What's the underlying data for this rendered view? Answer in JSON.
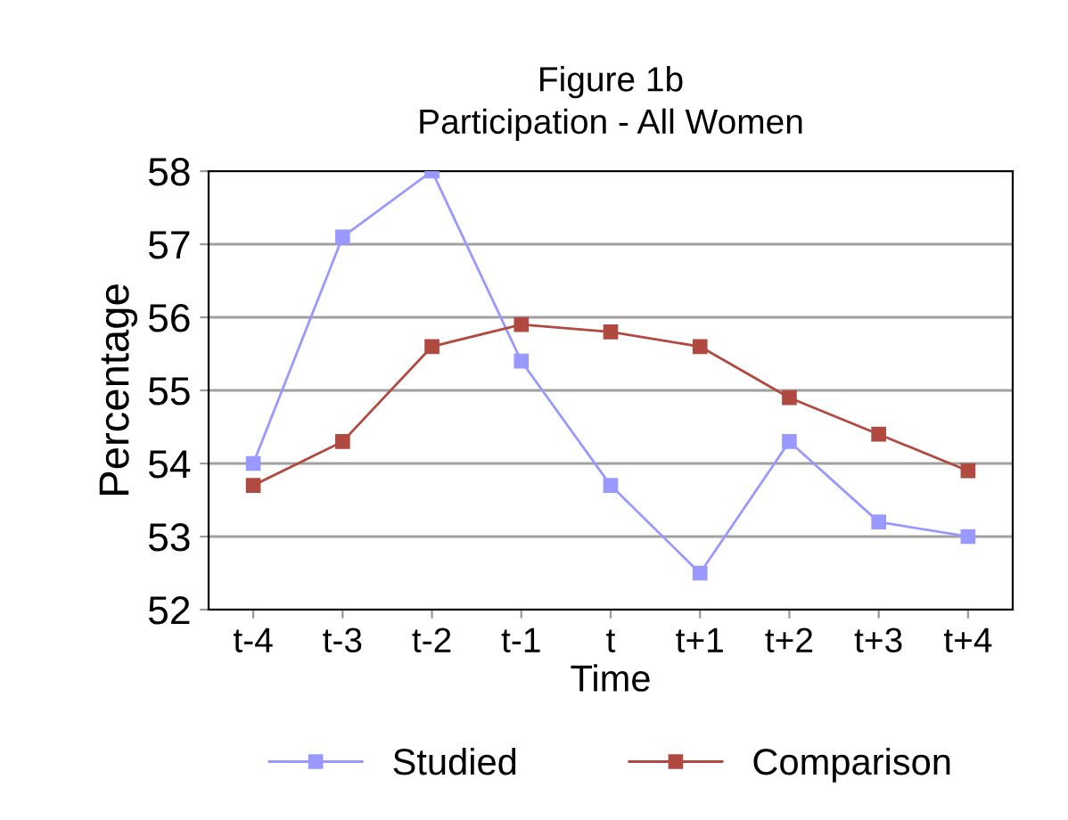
{
  "chart_data": {
    "type": "line",
    "title": "Figure 1b\nParticipation - All Women",
    "xlabel": "Time",
    "ylabel": "Percentage",
    "categories": [
      "t-4",
      "t-3",
      "t-2",
      "t-1",
      "t",
      "t+1",
      "t+2",
      "t+3",
      "t+4"
    ],
    "series": [
      {
        "name": "Studied",
        "color": "#9999ff",
        "values": [
          54.0,
          57.1,
          58.0,
          55.4,
          53.7,
          52.5,
          54.3,
          53.2,
          53.0
        ]
      },
      {
        "name": "Comparison",
        "color": "#b04a40",
        "values": [
          53.7,
          54.3,
          55.6,
          55.9,
          55.8,
          55.6,
          54.9,
          54.4,
          53.9
        ]
      }
    ],
    "ylim": [
      52,
      58
    ],
    "yticks": [
      52,
      53,
      54,
      55,
      56,
      57,
      58
    ],
    "grid": "y",
    "legend": "bottom",
    "marker": "square",
    "line_style": "solid"
  }
}
